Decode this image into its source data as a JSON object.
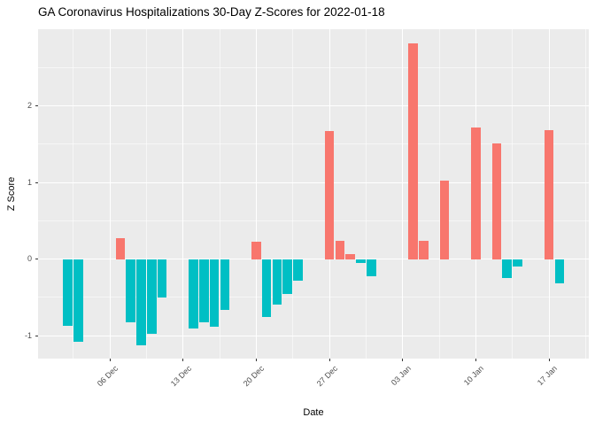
{
  "chart_data": {
    "type": "bar",
    "title": "GA Coronavirus Hospitalizations 30-Day Z-Scores for 2022-01-18",
    "xlabel": "Date",
    "ylabel": "Z Score",
    "x_ticks": [
      {
        "date": "2021-12-06",
        "label": "06 Dec"
      },
      {
        "date": "2021-12-13",
        "label": "13 Dec"
      },
      {
        "date": "2021-12-20",
        "label": "20 Dec"
      },
      {
        "date": "2021-12-27",
        "label": "27 Dec"
      },
      {
        "date": "2022-01-03",
        "label": "03 Jan"
      },
      {
        "date": "2022-01-10",
        "label": "10 Jan"
      },
      {
        "date": "2022-01-17",
        "label": "17 Jan"
      }
    ],
    "y_ticks": [
      -1,
      0,
      1,
      2
    ],
    "y_minor_ticks": [
      -0.5,
      0.5,
      1.5,
      2.5
    ],
    "ylim": [
      -1.3,
      3.0
    ],
    "x_origin_date": "2021-12-06",
    "legend": "none",
    "grid": "on",
    "colors": {
      "positive_bar": "#F8766D",
      "negative_bar": "#00BFC4",
      "panel_background": "#EBEBEB",
      "gridline": "#FFFFFF"
    },
    "points": [
      {
        "date": "2021-12-02",
        "value": -0.87
      },
      {
        "date": "2021-12-03",
        "value": -1.08
      },
      {
        "date": "2021-12-07",
        "value": 0.27
      },
      {
        "date": "2021-12-08",
        "value": -0.82
      },
      {
        "date": "2021-12-09",
        "value": -1.12
      },
      {
        "date": "2021-12-10",
        "value": -0.98
      },
      {
        "date": "2021-12-11",
        "value": -0.5
      },
      {
        "date": "2021-12-14",
        "value": -0.9
      },
      {
        "date": "2021-12-15",
        "value": -0.83
      },
      {
        "date": "2021-12-16",
        "value": -0.88
      },
      {
        "date": "2021-12-17",
        "value": -0.66
      },
      {
        "date": "2021-12-20",
        "value": 0.23
      },
      {
        "date": "2021-12-21",
        "value": -0.75
      },
      {
        "date": "2021-12-22",
        "value": -0.59
      },
      {
        "date": "2021-12-23",
        "value": -0.45
      },
      {
        "date": "2021-12-24",
        "value": -0.28
      },
      {
        "date": "2021-12-27",
        "value": 1.67
      },
      {
        "date": "2021-12-28",
        "value": 0.24
      },
      {
        "date": "2021-12-29",
        "value": 0.07
      },
      {
        "date": "2021-12-30",
        "value": -0.05
      },
      {
        "date": "2021-12-31",
        "value": -0.22
      },
      {
        "date": "2022-01-04",
        "value": 2.82
      },
      {
        "date": "2022-01-05",
        "value": 0.24
      },
      {
        "date": "2022-01-07",
        "value": 1.03
      },
      {
        "date": "2022-01-10",
        "value": 1.72
      },
      {
        "date": "2022-01-12",
        "value": 1.51
      },
      {
        "date": "2022-01-13",
        "value": -0.25
      },
      {
        "date": "2022-01-14",
        "value": -0.1
      },
      {
        "date": "2022-01-17",
        "value": 1.68
      },
      {
        "date": "2022-01-18",
        "value": -0.31
      }
    ]
  }
}
